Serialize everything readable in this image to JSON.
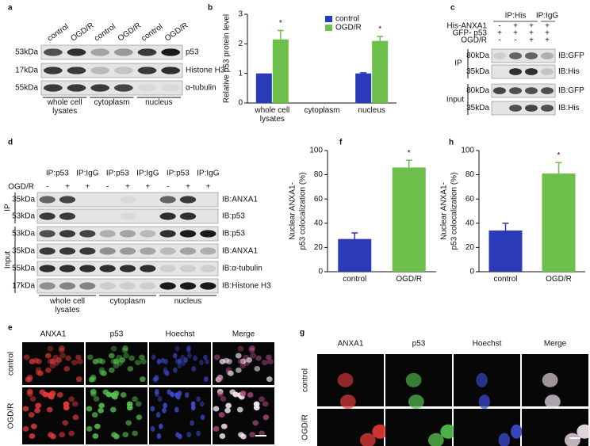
{
  "figure": {
    "panel_labels": [
      "a",
      "b",
      "c",
      "d",
      "e",
      "f",
      "g",
      "h"
    ],
    "a": {
      "lanes": [
        "control",
        "OGD/R",
        "control",
        "OGD/R",
        "control",
        "OGD/R"
      ],
      "sizes": [
        "53kDa",
        "17kDa",
        "55kDa"
      ],
      "proteins": [
        "p53",
        "Histone H3",
        "α-tubulin"
      ],
      "groups": [
        "whole cell lysates",
        "cytoplasm",
        "nucleus"
      ]
    },
    "c": {
      "ip_headers": [
        "IP:His",
        "IP:IgG"
      ],
      "conditions": [
        {
          "name": "His-ANXA1",
          "signs": [
            "-",
            "+",
            "+",
            "+"
          ]
        },
        {
          "name": "GFP- p53",
          "signs": [
            "+",
            "+",
            "+",
            "+"
          ]
        },
        {
          "name": "OGD/R",
          "signs": [
            "-",
            "-",
            "+",
            "+"
          ]
        }
      ],
      "sections": [
        "IP",
        "Input"
      ],
      "sizes": [
        "80kDa",
        "35kDa",
        "80kDa",
        "35kDa"
      ],
      "blots": [
        "IB:GFP",
        "IB:His",
        "IB:GFP",
        "IB:His"
      ]
    },
    "d": {
      "ip_headers": [
        "IP:p53",
        "IP:IgG",
        "IP:p53",
        "IP:IgG",
        "IP:p53",
        "IP:IgG"
      ],
      "condition": "OGD/R",
      "signs": [
        "-",
        "+",
        "+",
        "-",
        "+",
        "+",
        "-",
        "+",
        "+"
      ],
      "sections": [
        "IP",
        "Input"
      ],
      "sizes": [
        "35kDa",
        "53kDa",
        "53kDa",
        "35kDa",
        "55kDa",
        "17kDa"
      ],
      "blots": [
        "IB:ANXA1",
        "IB:p53",
        "IB:p53",
        "IB:ANXA1",
        "IB:α-tubulin",
        "IB:Histone H3"
      ],
      "groups": [
        "whole cell lysates",
        "cytoplasm",
        "nucleus"
      ]
    },
    "e": {
      "channels": [
        "ANXA1",
        "p53",
        "Hoechst",
        "Merge"
      ],
      "conditions": [
        "control",
        "OGD/R"
      ]
    },
    "g": {
      "channels": [
        "ANXA1",
        "p53",
        "Hoechst",
        "Merge"
      ],
      "conditions": [
        "control",
        "OGD/R"
      ]
    }
  },
  "chart_data": [
    {
      "type": "bar",
      "ylabel": "Relative p53 protein level",
      "categories": [
        "whole cell lysates",
        "cytoplasm",
        "nucleus"
      ],
      "series": [
        {
          "name": "control",
          "color": "#2b3bb8",
          "values": [
            1,
            null,
            1
          ],
          "errors": [
            null,
            null,
            0.02
          ]
        },
        {
          "name": "OGD/R",
          "color": "#6cbf4a",
          "values": [
            2.15,
            null,
            2.1
          ],
          "errors": [
            0.3,
            null,
            0.15
          ],
          "markers": [
            "*",
            null,
            "*"
          ]
        }
      ],
      "ylim": [
        0,
        3
      ],
      "yticks": [
        0,
        1,
        2,
        3
      ],
      "legend": "upper right"
    },
    {
      "type": "bar",
      "ylabel": [
        "Nuclear ANXA1-",
        "p53 colocalization (%)"
      ],
      "categories": [
        "control",
        "OGD/R"
      ],
      "values": [
        27,
        86
      ],
      "errors": [
        5,
        6
      ],
      "markers": [
        null,
        "*"
      ],
      "colors": [
        "#2b3bb8",
        "#6cbf4a"
      ],
      "ylim": [
        0,
        100
      ],
      "yticks": [
        0,
        20,
        40,
        60,
        80,
        100
      ]
    },
    {
      "type": "bar",
      "ylabel": [
        "Nuclear ANXA1-",
        "p53 colocalization (%)"
      ],
      "categories": [
        "control",
        "OGD/R"
      ],
      "values": [
        34,
        81
      ],
      "errors": [
        6,
        9
      ],
      "markers": [
        null,
        "*"
      ],
      "colors": [
        "#2b3bb8",
        "#6cbf4a"
      ],
      "ylim": [
        0,
        100
      ],
      "yticks": [
        0,
        20,
        40,
        60,
        80,
        100
      ]
    }
  ]
}
